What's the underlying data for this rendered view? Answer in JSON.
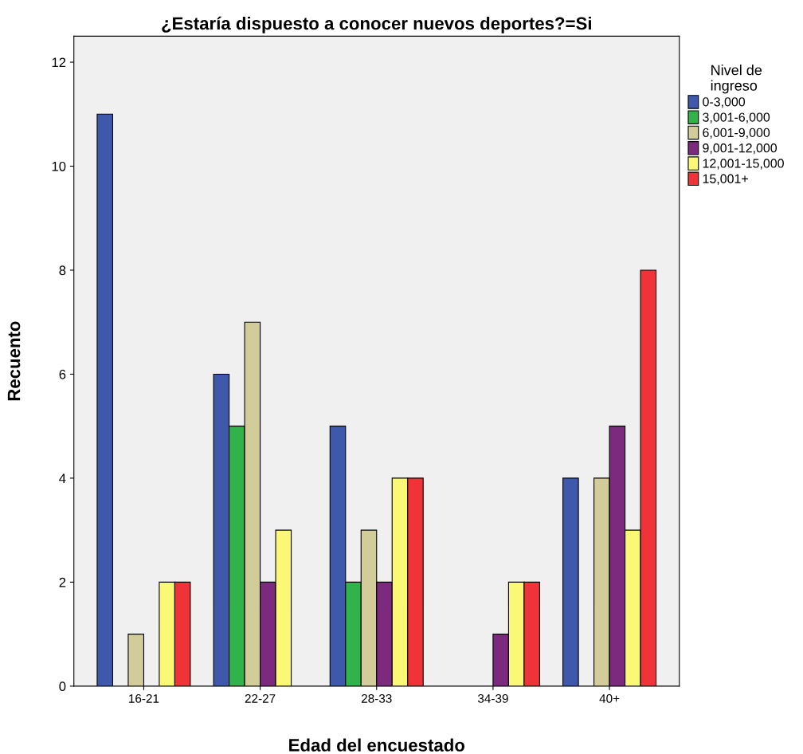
{
  "chart_data": {
    "type": "bar",
    "title": "¿Estaría dispuesto a conocer nuevos deportes?=Si",
    "xlabel": "Edad del encuestado",
    "ylabel": "Recuento",
    "legend_title": "Nivel de\ningreso",
    "categories": [
      "16-21",
      "22-27",
      "28-33",
      "34-39",
      "40+"
    ],
    "series": [
      {
        "name": "0-3,000",
        "color": "#3e58ac",
        "values": [
          11,
          6,
          5,
          null,
          4
        ]
      },
      {
        "name": "3,001-6,000",
        "color": "#2fb34a",
        "values": [
          null,
          5,
          2,
          null,
          null
        ]
      },
      {
        "name": "6,001-9,000",
        "color": "#d2cc9a",
        "values": [
          1,
          7,
          3,
          null,
          4
        ]
      },
      {
        "name": "9,001-12,000",
        "color": "#7b2a7e",
        "values": [
          null,
          2,
          2,
          1,
          5
        ]
      },
      {
        "name": "12,001-15,000",
        "color": "#fbf876",
        "values": [
          2,
          3,
          4,
          2,
          3
        ]
      },
      {
        "name": "15,001+",
        "color": "#ef3338",
        "values": [
          2,
          null,
          4,
          2,
          8
        ]
      }
    ],
    "ylim": [
      0,
      12.5
    ],
    "yticks": [
      0,
      2,
      4,
      6,
      8,
      10,
      12
    ],
    "grid": false,
    "legend": "top right"
  }
}
